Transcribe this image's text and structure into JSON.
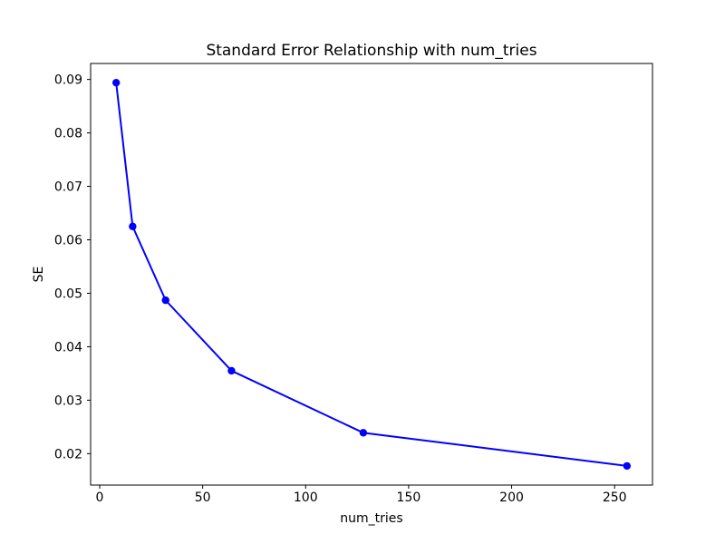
{
  "figure": {
    "background": "#ffffff"
  },
  "chart_data": {
    "type": "line",
    "title": "Standard Error Relationship with num_tries",
    "xlabel": "num_tries",
    "ylabel": "SE",
    "x": [
      8,
      16,
      32,
      64,
      128,
      256
    ],
    "y": [
      0.0894,
      0.0625,
      0.0487,
      0.0355,
      0.0239,
      0.0177
    ],
    "xlim": [
      -4.4,
      268.4
    ],
    "ylim": [
      0.01412,
      0.09299
    ],
    "xticks": [
      0,
      50,
      100,
      150,
      200,
      250
    ],
    "xtick_labels": [
      "0",
      "50",
      "100",
      "150",
      "200",
      "250"
    ],
    "yticks": [
      0.02,
      0.03,
      0.04,
      0.05,
      0.06,
      0.07,
      0.08,
      0.09
    ],
    "ytick_labels": [
      "0.02",
      "0.03",
      "0.04",
      "0.05",
      "0.06",
      "0.07",
      "0.08",
      "0.09"
    ],
    "line_color": "#0000ff",
    "marker": "circle",
    "marker_radius": 4.2,
    "line_width": 2,
    "grid": false,
    "legend": "none",
    "spine_color": "#000000",
    "text_color": "#000000"
  }
}
